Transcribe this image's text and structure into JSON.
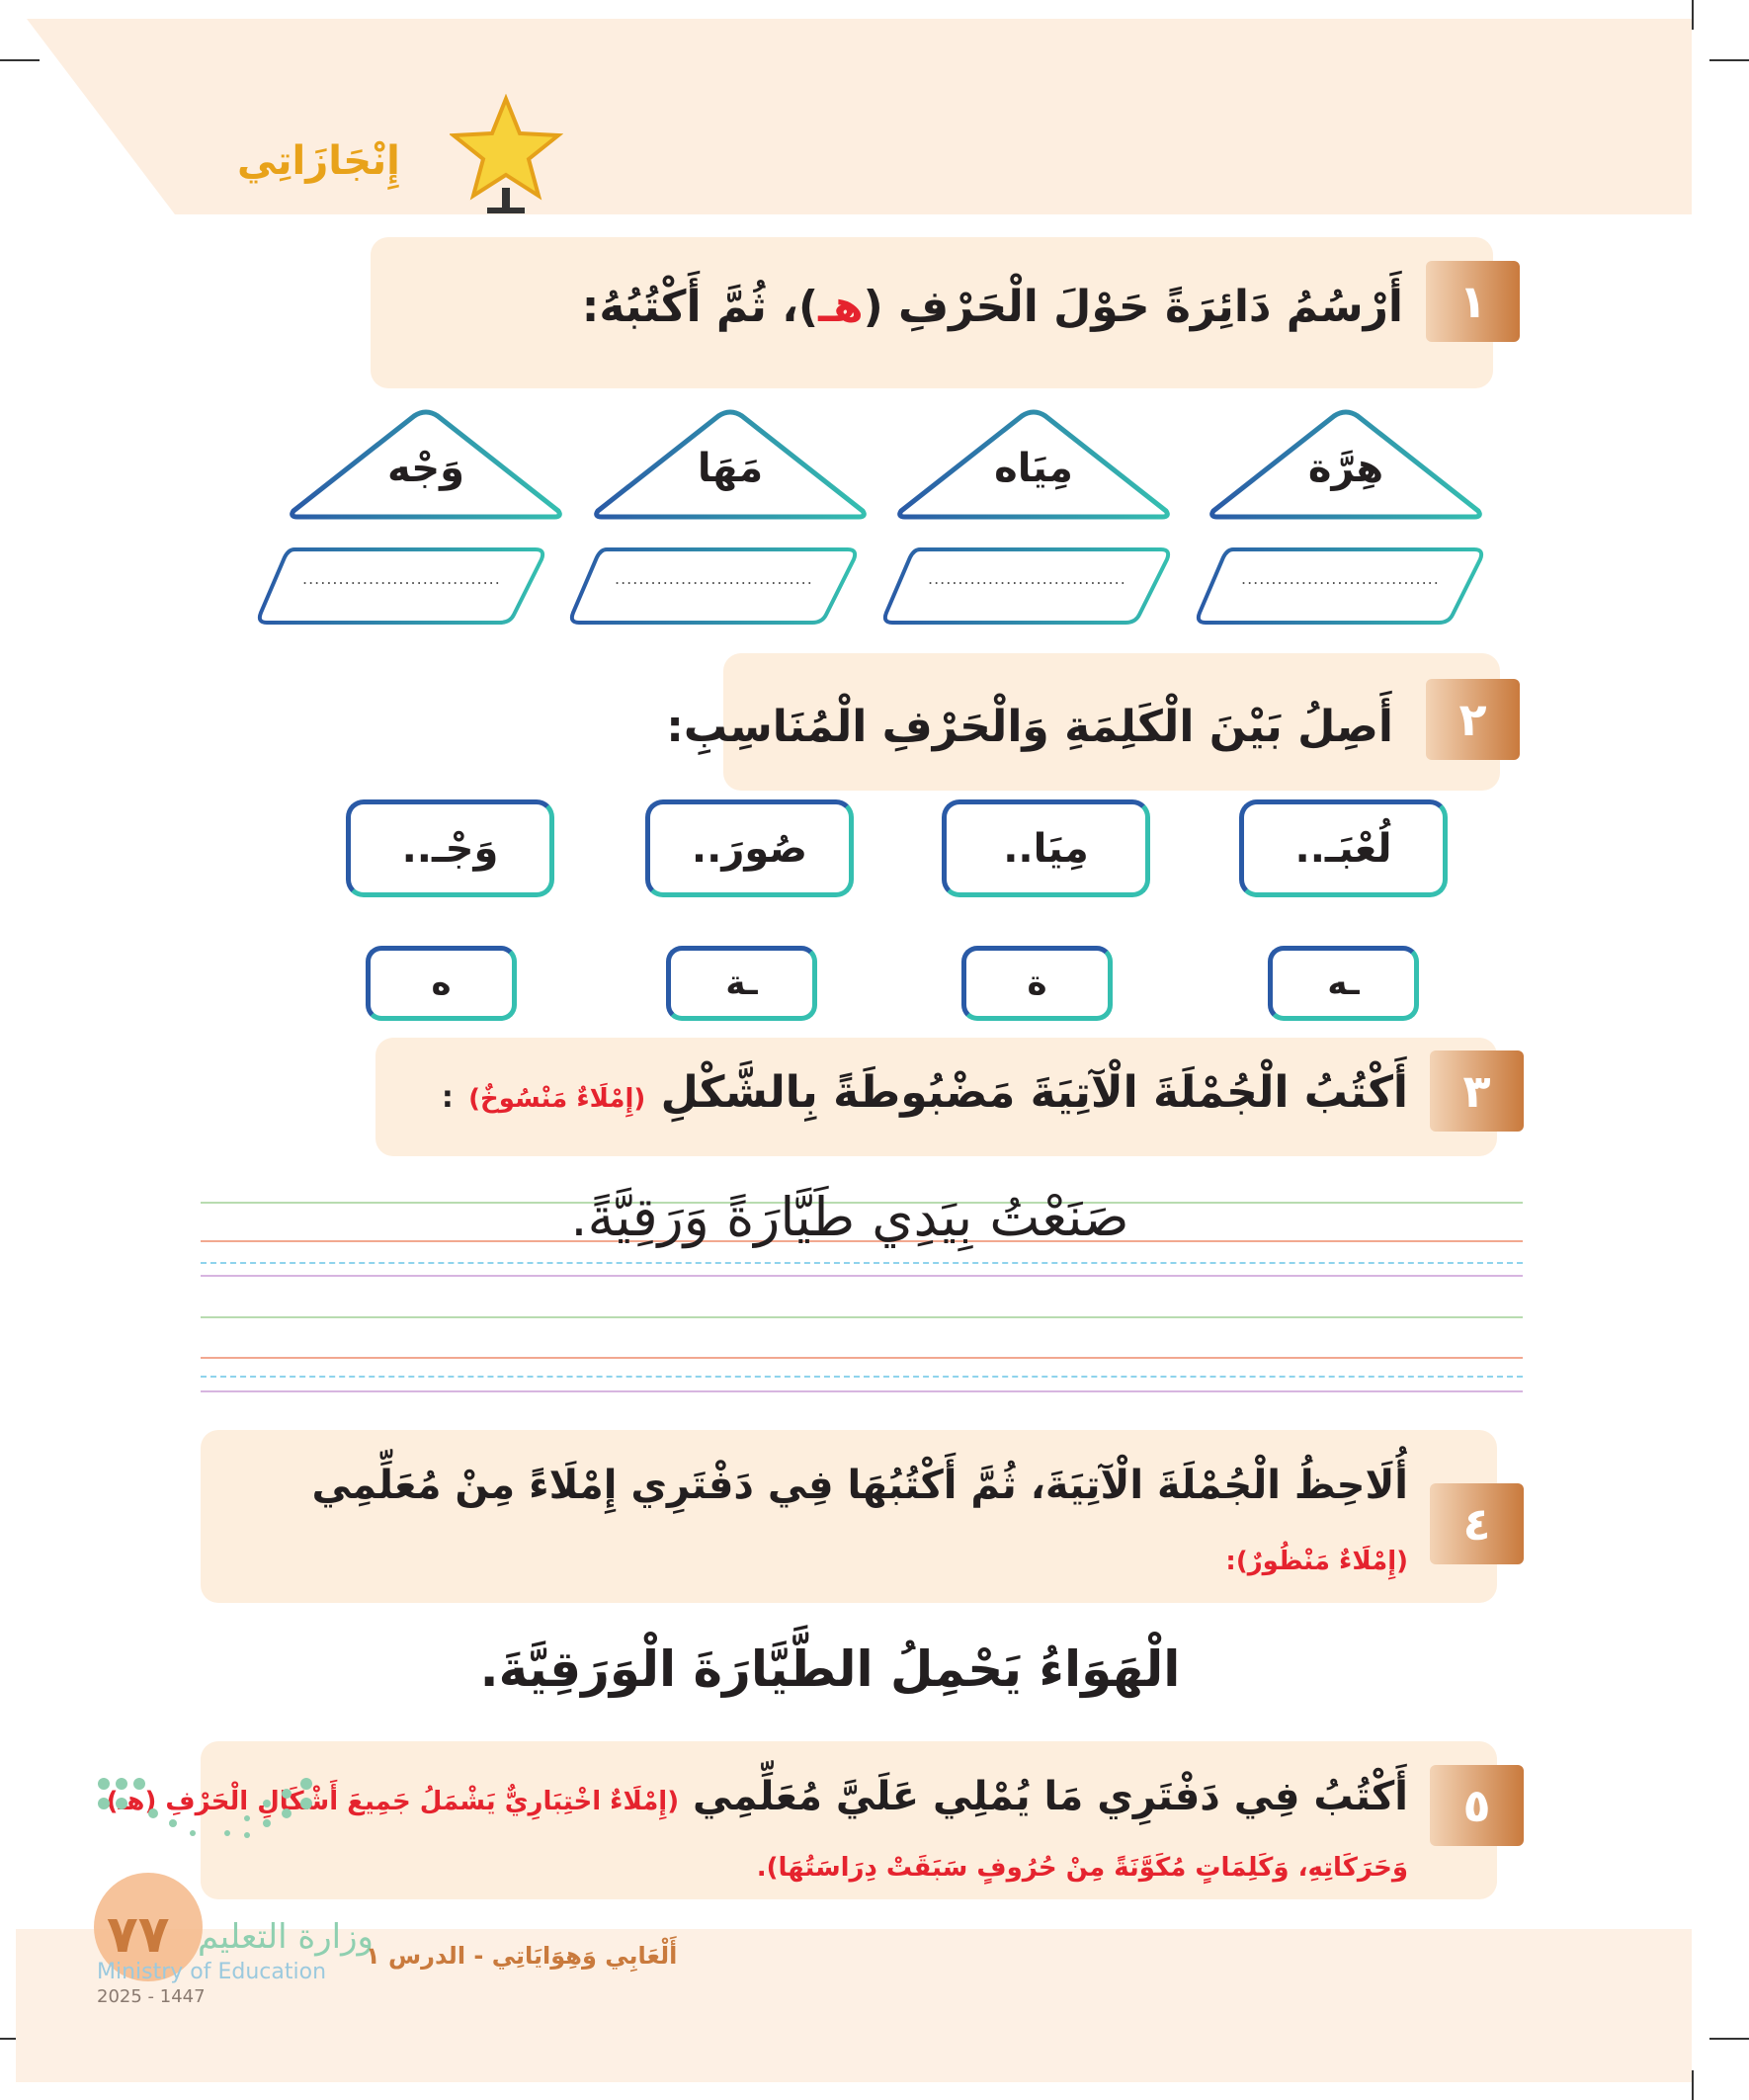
{
  "header": {
    "title": "إِنْجَازَاتِي",
    "icon": "star-trophy-icon"
  },
  "q1": {
    "number": "١",
    "text_before": "أَرْسُمُ دَائِرَةً حَوْلَ الْحَرْفِ (",
    "letter": "هـ",
    "text_after": ")، ثُمَّ أَكْتُبُهُ:",
    "words": [
      "هِرَّة",
      "مِيَاه",
      "مَهَا",
      "وَجْه"
    ],
    "dots": "................................."
  },
  "q2": {
    "number": "٢",
    "text": "أَصِلُ بَيْنَ الْكَلِمَةِ وَالْحَرْفِ الْمُنَاسِبِ:",
    "words": [
      "لُعْبَـ..",
      "مِيَا..",
      "صُورَ..",
      "وَجْـ.."
    ],
    "letters": [
      "ـه",
      "ة",
      "ـة",
      "ه"
    ]
  },
  "q3": {
    "number": "٣",
    "text": "أَكْتُبُ الْجُمْلَةَ الْآتِيَةَ مَضْبُوطَةً بِالشَّكْلِ",
    "note": "(إِمْلَاءٌ مَنْسُوخٌ)",
    "colon": ":",
    "sentence": "صَنَعْتُ بِيَدِي طَيَّارَةً وَرَقِيَّةً."
  },
  "q4": {
    "number": "٤",
    "text": "أُلَاحِظُ الْجُمْلَةَ الْآتِيَةَ، ثُمَّ أَكْتُبُهَا فِي دَفْتَرِي إِمْلَاءً مِنْ مُعَلِّمِي",
    "note": "(إِمْلَاءٌ مَنْظُورٌ):",
    "sentence": "الْهَوَاءُ يَحْمِلُ الطَّيَّارَةَ الْوَرَقِيَّةَ."
  },
  "q5": {
    "number": "٥",
    "text": "أَكْتُبُ فِي دَفْتَرِي مَا يُمْلِي عَلَيَّ مُعَلِّمِي",
    "note1": "(إِمْلَاءٌ اخْتِبَارِيٌّ يَشْمَلُ جَمِيعَ أَشْكَالِ الْحَرْفِ (هـ)",
    "note2": "وَحَرَكَاتِهِ، وَكَلِمَاتٍ مُكَوَّنَةً مِنْ حُرُوفٍ سَبَقَتْ دِرَاسَتُهَا)."
  },
  "footer": {
    "page": "٧٧",
    "ministry_ar": "وزارة التعليم",
    "ministry_en": "Ministry of Education",
    "year": "2025 - 1447",
    "lesson": "أَلْعَابِي وَهِوَايَاتِي - الدرس ١"
  },
  "colors": {
    "peach": "#fdeedd",
    "badge": "#c97a3d",
    "red": "#e5232e",
    "blue": "#2a5aa6",
    "teal": "#35bfb0",
    "title": "#e8a21a"
  }
}
